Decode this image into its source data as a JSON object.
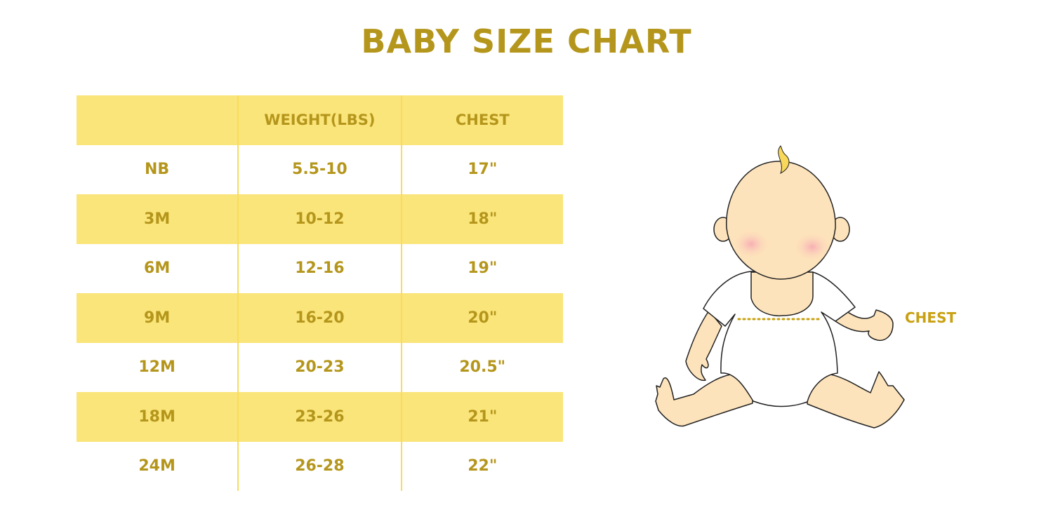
{
  "title": "BABY SIZE CHART",
  "table": {
    "headers": [
      "",
      "WEIGHT(LBS)",
      "CHEST"
    ],
    "rows": [
      [
        "NB",
        "5.5-10",
        "17\""
      ],
      [
        "3M",
        "10-12",
        "18\""
      ],
      [
        "6M",
        "12-16",
        "19\""
      ],
      [
        "9M",
        "16-20",
        "20\""
      ],
      [
        "12M",
        "20-23",
        "20.5\""
      ],
      [
        "18M",
        "23-26",
        "21\""
      ],
      [
        "24M",
        "26-28",
        "22\""
      ]
    ]
  },
  "illustration": {
    "label": "CHEST",
    "icon": "baby-measurement-illustration"
  },
  "colors": {
    "accent_text": "#b5961c",
    "row_fill": "#fae57a",
    "skin": "#fde3bb",
    "cheek": "#f7a8b4"
  }
}
